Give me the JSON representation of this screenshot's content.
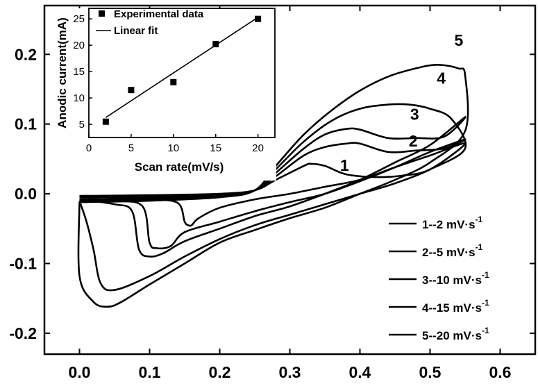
{
  "chart_data": [
    {
      "type": "line",
      "title": "",
      "xlabel": "",
      "ylabel": "",
      "xlim": [
        -0.05,
        0.65
      ],
      "ylim": [
        -0.23,
        0.27
      ],
      "x_ticks": [
        "0.0",
        "0.1",
        "0.2",
        "0.3",
        "0.4",
        "0.5",
        "0.6"
      ],
      "y_ticks": [
        "0.2",
        "0.1",
        "0.0",
        "-0.1",
        "-0.2"
      ],
      "x_tick_values": [
        0.0,
        0.1,
        0.2,
        0.3,
        0.4,
        0.5,
        0.6
      ],
      "y_tick_values": [
        0.2,
        0.1,
        0.0,
        -0.1,
        -0.2
      ],
      "grid": false,
      "legend_position": "bottom-right",
      "series": [
        {
          "name": "1--2 mV·s",
          "label": "1",
          "sup": "-1",
          "x": [
            0.0,
            0.1,
            0.2,
            0.25,
            0.28,
            0.32,
            0.33,
            0.35,
            0.38,
            0.42,
            0.46,
            0.5,
            0.55,
            0.5,
            0.45,
            0.4,
            0.35,
            0.3,
            0.25,
            0.2,
            0.17,
            0.16,
            0.155,
            0.15,
            0.14,
            0.1,
            0.05,
            0.0
          ],
          "y": [
            -0.003,
            -0.002,
            0.0,
            0.005,
            0.02,
            0.04,
            0.043,
            0.04,
            0.028,
            0.024,
            0.026,
            0.035,
            0.072,
            0.055,
            0.038,
            0.02,
            0.01,
            0.0,
            -0.008,
            -0.02,
            -0.035,
            -0.045,
            -0.045,
            -0.04,
            -0.013,
            -0.008,
            -0.005,
            -0.003
          ]
        },
        {
          "name": "2--5 mV·s",
          "label": "2",
          "sup": "-1",
          "x": [
            0.0,
            0.1,
            0.2,
            0.25,
            0.28,
            0.32,
            0.35,
            0.38,
            0.4,
            0.44,
            0.48,
            0.52,
            0.55,
            0.5,
            0.45,
            0.4,
            0.35,
            0.3,
            0.25,
            0.2,
            0.15,
            0.13,
            0.11,
            0.1,
            0.09,
            0.05,
            0.0
          ],
          "y": [
            -0.005,
            -0.004,
            -0.002,
            0.005,
            0.025,
            0.055,
            0.067,
            0.072,
            0.072,
            0.06,
            0.062,
            0.065,
            0.078,
            0.06,
            0.038,
            0.018,
            0.0,
            -0.012,
            -0.025,
            -0.04,
            -0.055,
            -0.075,
            -0.078,
            -0.07,
            -0.018,
            -0.01,
            -0.005
          ]
        },
        {
          "name": "3--10 mV·s",
          "label": "3",
          "sup": "-1",
          "x": [
            0.0,
            0.1,
            0.2,
            0.25,
            0.28,
            0.32,
            0.35,
            0.38,
            0.4,
            0.44,
            0.48,
            0.52,
            0.55,
            0.5,
            0.45,
            0.4,
            0.35,
            0.3,
            0.25,
            0.2,
            0.15,
            0.12,
            0.1,
            0.085,
            0.075,
            0.05,
            0.0
          ],
          "y": [
            -0.008,
            -0.006,
            -0.003,
            0.005,
            0.03,
            0.065,
            0.085,
            0.093,
            0.092,
            0.08,
            0.08,
            0.082,
            0.11,
            0.07,
            0.045,
            0.02,
            0.0,
            -0.018,
            -0.032,
            -0.05,
            -0.068,
            -0.085,
            -0.09,
            -0.08,
            -0.025,
            -0.015,
            -0.008
          ]
        },
        {
          "name": "4--15 mV·s",
          "label": "4",
          "sup": "-1",
          "x": [
            0.0,
            0.1,
            0.2,
            0.25,
            0.28,
            0.32,
            0.36,
            0.4,
            0.44,
            0.47,
            0.5,
            0.53,
            0.55,
            0.5,
            0.45,
            0.4,
            0.35,
            0.3,
            0.25,
            0.2,
            0.15,
            0.1,
            0.05,
            0.03,
            0.02,
            0.01,
            0.0
          ],
          "y": [
            -0.01,
            -0.008,
            -0.004,
            0.005,
            0.035,
            0.075,
            0.105,
            0.122,
            0.128,
            0.128,
            0.122,
            0.108,
            0.065,
            0.035,
            0.015,
            0.0,
            -0.015,
            -0.03,
            -0.045,
            -0.065,
            -0.09,
            -0.118,
            -0.138,
            -0.128,
            -0.08,
            -0.04,
            -0.01
          ]
        },
        {
          "name": "5--20 mV·s",
          "label": "5",
          "sup": "-1",
          "x": [
            0.0,
            0.1,
            0.2,
            0.25,
            0.28,
            0.32,
            0.36,
            0.4,
            0.44,
            0.48,
            0.51,
            0.54,
            0.55,
            0.55,
            0.5,
            0.45,
            0.4,
            0.35,
            0.3,
            0.25,
            0.2,
            0.15,
            0.1,
            0.06,
            0.04,
            0.02,
            0.0,
            0.0
          ],
          "y": [
            -0.012,
            -0.01,
            -0.005,
            0.005,
            0.04,
            0.085,
            0.12,
            0.148,
            0.168,
            0.18,
            0.185,
            0.18,
            0.17,
            0.09,
            0.045,
            0.02,
            0.0,
            -0.02,
            -0.035,
            -0.052,
            -0.07,
            -0.1,
            -0.13,
            -0.155,
            -0.162,
            -0.155,
            -0.118,
            -0.012
          ]
        }
      ]
    },
    {
      "type": "scatter",
      "title": "",
      "xlabel": "Scan rate(mV/s)",
      "ylabel": "Anodic current(mA)",
      "xlim": [
        0,
        22
      ],
      "ylim": [
        2.5,
        27
      ],
      "x_ticks": [
        "0",
        "5",
        "10",
        "15",
        "20"
      ],
      "y_ticks": [
        "5",
        "10",
        "15",
        "20",
        "25"
      ],
      "x_tick_values": [
        0,
        5,
        10,
        15,
        20
      ],
      "y_tick_values": [
        5,
        10,
        15,
        20,
        25
      ],
      "grid": false,
      "legend_position": "top-left",
      "series": [
        {
          "name": "Experimental data",
          "x": [
            2,
            5,
            10,
            15,
            20
          ],
          "y": [
            5.5,
            11.5,
            13,
            20.2,
            25
          ]
        },
        {
          "name": "Linear fit",
          "x": [
            2,
            20
          ],
          "y": [
            6.3,
            25.3
          ]
        }
      ]
    }
  ]
}
